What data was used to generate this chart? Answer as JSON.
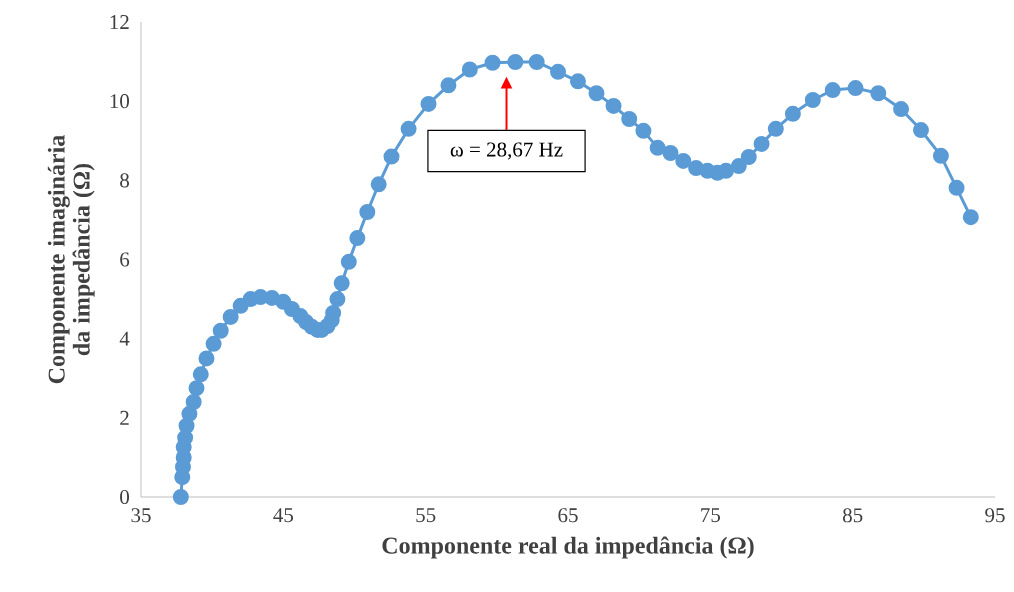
{
  "chart_data": {
    "type": "line",
    "xlabel": "Componente real da impedância (Ω)",
    "ylabel": "Componente imaginária da impedância (Ω)",
    "x": [
      37.8,
      37.9,
      37.95,
      38.0,
      38.0,
      38.1,
      38.2,
      38.4,
      38.7,
      38.9,
      39.2,
      39.6,
      40.1,
      40.6,
      41.3,
      42.0,
      42.7,
      43.4,
      44.2,
      45.0,
      45.6,
      46.2,
      46.6,
      47.0,
      47.4,
      47.7,
      48.1,
      48.4,
      48.5,
      48.8,
      49.1,
      49.6,
      50.2,
      50.9,
      51.7,
      52.6,
      53.8,
      55.2,
      56.6,
      58.1,
      59.7,
      61.3,
      62.8,
      64.3,
      65.7,
      67.0,
      68.2,
      69.3,
      70.3,
      71.3,
      72.2,
      73.1,
      74.0,
      74.8,
      75.5,
      76.1,
      77.0,
      77.7,
      78.6,
      79.6,
      80.8,
      82.2,
      83.6,
      85.2,
      86.8,
      88.4,
      89.8,
      91.2,
      92.3,
      93.3
    ],
    "series": [
      {
        "color": "#5b9bd5",
        "values": [
          0,
          0.5,
          0.76,
          1.0,
          1.26,
          1.5,
          1.8,
          2.1,
          2.4,
          2.75,
          3.1,
          3.5,
          3.87,
          4.2,
          4.55,
          4.83,
          5.0,
          5.05,
          5.03,
          4.93,
          4.75,
          4.57,
          4.42,
          4.3,
          4.22,
          4.22,
          4.32,
          4.47,
          4.65,
          5.0,
          5.4,
          5.94,
          6.54,
          7.2,
          7.9,
          8.6,
          9.3,
          9.93,
          10.4,
          10.8,
          10.97,
          10.99,
          10.99,
          10.74,
          10.5,
          10.2,
          9.88,
          9.55,
          9.25,
          8.82,
          8.69,
          8.49,
          8.31,
          8.24,
          8.19,
          8.24,
          8.36,
          8.59,
          8.92,
          9.3,
          9.68,
          10.03,
          10.28,
          10.33,
          10.2,
          9.8,
          9.27,
          8.62,
          7.81,
          7.07
        ]
      }
    ],
    "xlim": [
      35,
      95
    ],
    "xticks": [
      35,
      45,
      55,
      65,
      75,
      85,
      95
    ],
    "ylim": [
      0,
      12
    ],
    "yticks": [
      0,
      2,
      4,
      6,
      8,
      10,
      12
    ],
    "marker": "circle",
    "line_style": "solid",
    "grid": false,
    "legend": false,
    "annotations": [
      "ω = 28,67 Hz"
    ]
  }
}
